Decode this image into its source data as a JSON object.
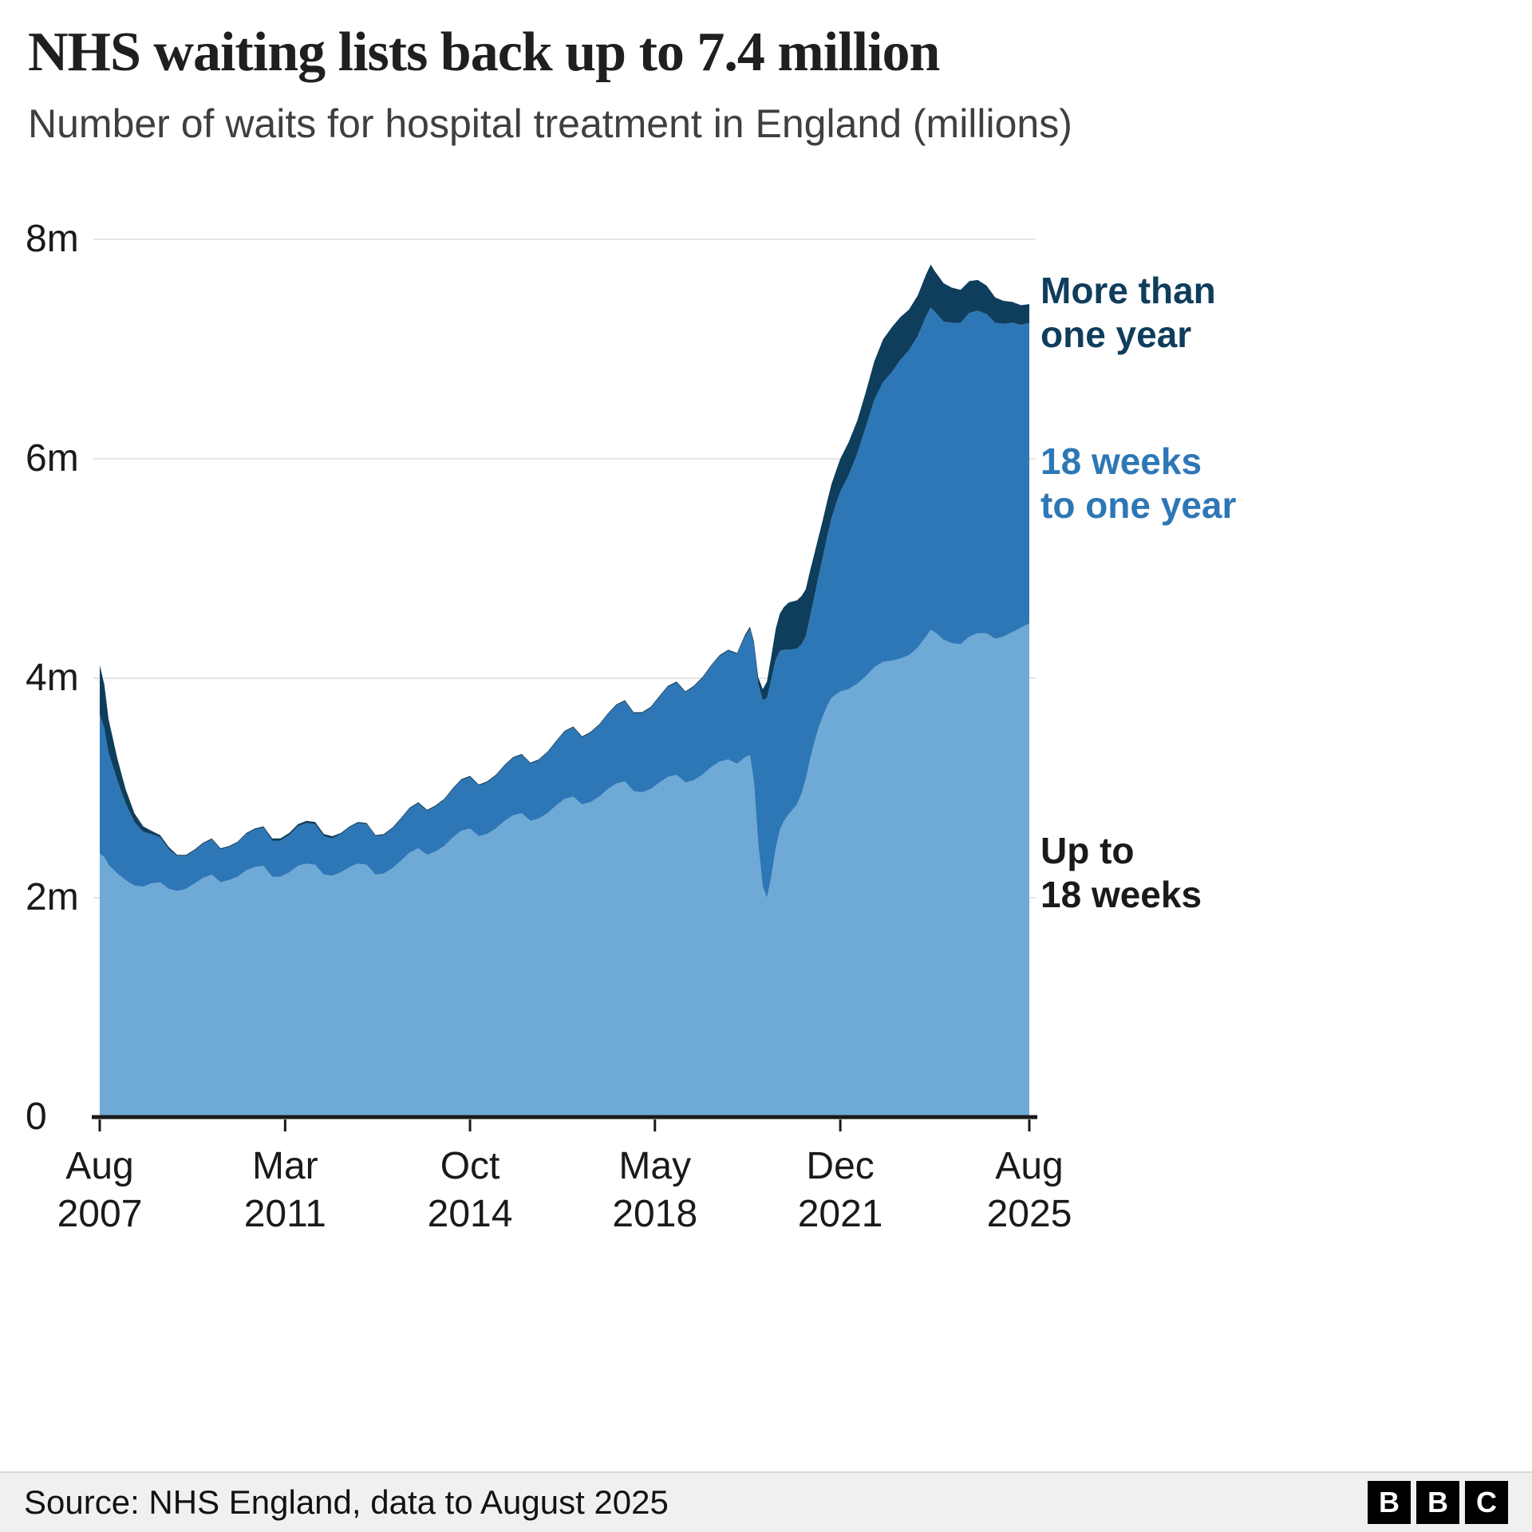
{
  "header": {
    "title": "NHS waiting lists back up to 7.4 million",
    "subtitle": "Number of waits for hospital treatment in England (millions)"
  },
  "footer": {
    "source": "Source: NHS England, data to August 2025",
    "logo_letters": [
      "B",
      "B",
      "C"
    ]
  },
  "chart_data": {
    "type": "area",
    "stacked": true,
    "title": "NHS waiting lists back up to 7.4 million",
    "subtitle": "Number of waits for hospital treatment in England (millions)",
    "x_unit": "decimal_year",
    "x_range": [
      2007.58,
      2025.58
    ],
    "ylim": [
      0,
      8
    ],
    "grid": true,
    "grid_color": "#E4E4E4",
    "axis_color": "#1A1A1A",
    "y_ticks": [
      {
        "value": 0,
        "label": "0"
      },
      {
        "value": 2,
        "label": "2m"
      },
      {
        "value": 4,
        "label": "4m"
      },
      {
        "value": 6,
        "label": "6m"
      },
      {
        "value": 8,
        "label": "8m"
      }
    ],
    "x_ticks": [
      {
        "value": 2007.58,
        "month": "Aug",
        "year": "2007"
      },
      {
        "value": 2011.17,
        "month": "Mar",
        "year": "2011"
      },
      {
        "value": 2014.75,
        "month": "Oct",
        "year": "2014"
      },
      {
        "value": 2018.33,
        "month": "May",
        "year": "2018"
      },
      {
        "value": 2021.92,
        "month": "Dec",
        "year": "2021"
      },
      {
        "value": 2025.58,
        "month": "Aug",
        "year": "2025"
      }
    ],
    "series": [
      {
        "id": "up-to-18-weeks",
        "name": "Up to 18 weeks",
        "color": "#6FA9D5"
      },
      {
        "id": "18-weeks-to-one-year",
        "name": "18 weeks to one year",
        "color": "#2E77B6"
      },
      {
        "id": "more-than-one-year",
        "name": "More than one year",
        "color": "#0F3D5C"
      }
    ],
    "annotations": [
      {
        "name": "annotation-more-than-one-year",
        "lines": [
          "More than",
          "one year"
        ],
        "color": "#0F3D5C",
        "anchor_value": 7.35
      },
      {
        "name": "annotation-18-weeks-to-one-year",
        "lines": [
          "18 weeks",
          "to one year"
        ],
        "color": "#2E77B6",
        "anchor_value": 5.8
      },
      {
        "name": "annotation-up-to-18-weeks",
        "lines": [
          "Up to",
          "18 weeks"
        ],
        "color": "#1A1A1A",
        "anchor_value": 2.25
      }
    ],
    "points_format": [
      "decimal_year",
      "up_to_18_weeks_m",
      "18_weeks_to_one_year_m",
      "more_than_one_year_m"
    ],
    "points": [
      [
        2007.58,
        2.4,
        1.27,
        0.45
      ],
      [
        2007.67,
        2.37,
        1.17,
        0.4
      ],
      [
        2007.75,
        2.3,
        1.02,
        0.31
      ],
      [
        2007.92,
        2.22,
        0.85,
        0.2
      ],
      [
        2008.08,
        2.16,
        0.7,
        0.13
      ],
      [
        2008.25,
        2.11,
        0.58,
        0.08
      ],
      [
        2008.42,
        2.1,
        0.5,
        0.05
      ],
      [
        2008.58,
        2.13,
        0.45,
        0.03
      ],
      [
        2008.75,
        2.14,
        0.41,
        0.02
      ],
      [
        2008.92,
        2.08,
        0.36,
        0.02
      ],
      [
        2009.08,
        2.06,
        0.32,
        0.01
      ],
      [
        2009.25,
        2.08,
        0.3,
        0.01
      ],
      [
        2009.42,
        2.13,
        0.3,
        0.01
      ],
      [
        2009.58,
        2.18,
        0.31,
        0.01
      ],
      [
        2009.75,
        2.21,
        0.32,
        0.01
      ],
      [
        2009.92,
        2.14,
        0.3,
        0.01
      ],
      [
        2010.08,
        2.16,
        0.3,
        0.01
      ],
      [
        2010.25,
        2.19,
        0.31,
        0.01
      ],
      [
        2010.42,
        2.25,
        0.33,
        0.01
      ],
      [
        2010.58,
        2.28,
        0.34,
        0.01
      ],
      [
        2010.75,
        2.29,
        0.35,
        0.01
      ],
      [
        2010.92,
        2.19,
        0.33,
        0.02
      ],
      [
        2011.08,
        2.19,
        0.33,
        0.02
      ],
      [
        2011.25,
        2.23,
        0.34,
        0.02
      ],
      [
        2011.42,
        2.29,
        0.36,
        0.02
      ],
      [
        2011.58,
        2.31,
        0.37,
        0.02
      ],
      [
        2011.75,
        2.3,
        0.37,
        0.02
      ],
      [
        2011.92,
        2.21,
        0.35,
        0.02
      ],
      [
        2012.08,
        2.2,
        0.34,
        0.02
      ],
      [
        2012.25,
        2.23,
        0.35,
        0.01
      ],
      [
        2012.42,
        2.28,
        0.36,
        0.01
      ],
      [
        2012.58,
        2.31,
        0.37,
        0.01
      ],
      [
        2012.75,
        2.3,
        0.37,
        0.01
      ],
      [
        2012.92,
        2.21,
        0.35,
        0.01
      ],
      [
        2013.08,
        2.22,
        0.35,
        0.01
      ],
      [
        2013.25,
        2.27,
        0.36,
        0.01
      ],
      [
        2013.42,
        2.34,
        0.38,
        0.01
      ],
      [
        2013.58,
        2.41,
        0.4,
        0.01
      ],
      [
        2013.75,
        2.45,
        0.41,
        0.01
      ],
      [
        2013.92,
        2.39,
        0.4,
        0.01
      ],
      [
        2014.08,
        2.42,
        0.41,
        0.01
      ],
      [
        2014.25,
        2.47,
        0.42,
        0.01
      ],
      [
        2014.42,
        2.55,
        0.44,
        0.01
      ],
      [
        2014.58,
        2.61,
        0.46,
        0.01
      ],
      [
        2014.75,
        2.63,
        0.47,
        0.01
      ],
      [
        2014.92,
        2.56,
        0.46,
        0.01
      ],
      [
        2015.08,
        2.58,
        0.47,
        0.01
      ],
      [
        2015.25,
        2.63,
        0.48,
        0.01
      ],
      [
        2015.42,
        2.7,
        0.5,
        0.01
      ],
      [
        2015.58,
        2.75,
        0.52,
        0.01
      ],
      [
        2015.75,
        2.77,
        0.53,
        0.01
      ],
      [
        2015.92,
        2.7,
        0.52,
        0.01
      ],
      [
        2016.08,
        2.72,
        0.53,
        0.01
      ],
      [
        2016.25,
        2.77,
        0.55,
        0.01
      ],
      [
        2016.42,
        2.84,
        0.58,
        0.01
      ],
      [
        2016.58,
        2.9,
        0.61,
        0.01
      ],
      [
        2016.75,
        2.92,
        0.63,
        0.01
      ],
      [
        2016.92,
        2.85,
        0.61,
        0.01
      ],
      [
        2017.08,
        2.87,
        0.63,
        0.01
      ],
      [
        2017.25,
        2.92,
        0.65,
        0.01
      ],
      [
        2017.42,
        2.99,
        0.68,
        0.01
      ],
      [
        2017.58,
        3.04,
        0.71,
        0.01
      ],
      [
        2017.75,
        3.06,
        0.73,
        0.01
      ],
      [
        2017.92,
        2.97,
        0.71,
        0.01
      ],
      [
        2018.08,
        2.96,
        0.72,
        0.01
      ],
      [
        2018.25,
        2.99,
        0.74,
        0.01
      ],
      [
        2018.42,
        3.05,
        0.78,
        0.01
      ],
      [
        2018.58,
        3.1,
        0.82,
        0.01
      ],
      [
        2018.75,
        3.12,
        0.84,
        0.01
      ],
      [
        2018.92,
        3.05,
        0.82,
        0.01
      ],
      [
        2019.08,
        3.07,
        0.85,
        0.01
      ],
      [
        2019.25,
        3.12,
        0.88,
        0.01
      ],
      [
        2019.42,
        3.19,
        0.92,
        0.01
      ],
      [
        2019.58,
        3.24,
        0.96,
        0.01
      ],
      [
        2019.75,
        3.26,
        0.99,
        0.01
      ],
      [
        2019.92,
        3.22,
        1.0,
        0.01
      ],
      [
        2020.08,
        3.28,
        1.1,
        0.02
      ],
      [
        2020.17,
        3.3,
        1.15,
        0.02
      ],
      [
        2020.25,
        3.05,
        1.25,
        0.03
      ],
      [
        2020.33,
        2.5,
        1.45,
        0.06
      ],
      [
        2020.42,
        2.1,
        1.7,
        0.1
      ],
      [
        2020.5,
        2.0,
        1.82,
        0.15
      ],
      [
        2020.58,
        2.18,
        1.8,
        0.21
      ],
      [
        2020.67,
        2.45,
        1.72,
        0.28
      ],
      [
        2020.75,
        2.62,
        1.63,
        0.34
      ],
      [
        2020.83,
        2.7,
        1.56,
        0.39
      ],
      [
        2020.92,
        2.76,
        1.5,
        0.43
      ],
      [
        2021.08,
        2.85,
        1.42,
        0.44
      ],
      [
        2021.17,
        2.95,
        1.36,
        0.44
      ],
      [
        2021.25,
        3.08,
        1.3,
        0.43
      ],
      [
        2021.33,
        3.25,
        1.3,
        0.42
      ],
      [
        2021.42,
        3.42,
        1.33,
        0.39
      ],
      [
        2021.5,
        3.55,
        1.38,
        0.36
      ],
      [
        2021.58,
        3.65,
        1.45,
        0.34
      ],
      [
        2021.67,
        3.75,
        1.55,
        0.32
      ],
      [
        2021.75,
        3.82,
        1.64,
        0.31
      ],
      [
        2021.83,
        3.85,
        1.73,
        0.3
      ],
      [
        2021.92,
        3.88,
        1.82,
        0.3
      ],
      [
        2022.08,
        3.9,
        1.95,
        0.3
      ],
      [
        2022.25,
        3.95,
        2.1,
        0.3
      ],
      [
        2022.42,
        4.02,
        2.28,
        0.32
      ],
      [
        2022.58,
        4.1,
        2.44,
        0.35
      ],
      [
        2022.75,
        4.15,
        2.55,
        0.39
      ],
      [
        2022.92,
        4.16,
        2.63,
        0.41
      ],
      [
        2023.08,
        4.18,
        2.72,
        0.39
      ],
      [
        2023.25,
        4.21,
        2.78,
        0.37
      ],
      [
        2023.42,
        4.28,
        2.84,
        0.37
      ],
      [
        2023.58,
        4.38,
        2.92,
        0.38
      ],
      [
        2023.67,
        4.44,
        2.94,
        0.39
      ],
      [
        2023.75,
        4.42,
        2.92,
        0.37
      ],
      [
        2023.92,
        4.35,
        2.9,
        0.35
      ],
      [
        2024.08,
        4.32,
        2.92,
        0.32
      ],
      [
        2024.25,
        4.31,
        2.93,
        0.3
      ],
      [
        2024.42,
        4.38,
        2.95,
        0.29
      ],
      [
        2024.58,
        4.41,
        2.94,
        0.28
      ],
      [
        2024.75,
        4.41,
        2.91,
        0.26
      ],
      [
        2024.92,
        4.36,
        2.88,
        0.23
      ],
      [
        2025.08,
        4.38,
        2.85,
        0.21
      ],
      [
        2025.25,
        4.42,
        2.82,
        0.19
      ],
      [
        2025.42,
        4.46,
        2.76,
        0.18
      ],
      [
        2025.58,
        4.5,
        2.74,
        0.17
      ]
    ],
    "legend_position": "right-annotations",
    "latest_total_millions": 7.41
  }
}
